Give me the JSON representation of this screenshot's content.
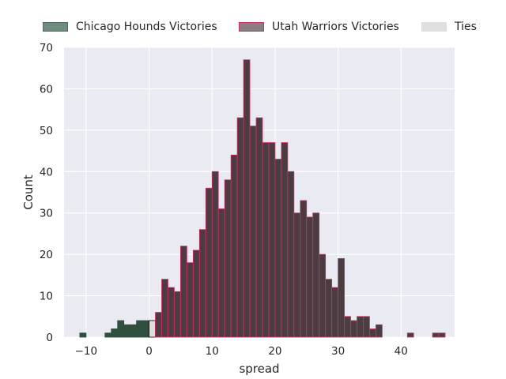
{
  "chart_data": {
    "type": "bar",
    "title": "",
    "xlabel": "spread",
    "ylabel": "Count",
    "xlim": [
      -13.5,
      48.5
    ],
    "ylim": [
      0,
      70
    ],
    "x_ticks": [
      -10,
      0,
      10,
      20,
      30,
      40
    ],
    "y_ticks": [
      0,
      10,
      20,
      30,
      40,
      50,
      60,
      70
    ],
    "grid": true,
    "legend_placement": "top",
    "bin_width": 1,
    "series": [
      {
        "name": "Chicago Hounds Victories",
        "color": "#2f4f3f",
        "edge_color": "#2f4f3f",
        "bins": [
          {
            "x": -11,
            "count": 1
          },
          {
            "x": -7,
            "count": 1
          },
          {
            "x": -6,
            "count": 2
          },
          {
            "x": -5,
            "count": 4
          },
          {
            "x": -4,
            "count": 3
          },
          {
            "x": -3,
            "count": 3
          },
          {
            "x": -2,
            "count": 4
          },
          {
            "x": -1,
            "count": 4
          }
        ]
      },
      {
        "name": "Ties",
        "color": "#dcdcdc",
        "edge_color": "#000000",
        "bins": [
          {
            "x": 0,
            "count": 4
          }
        ]
      },
      {
        "name": "Utah Warriors Victories",
        "color": "#4d3b42",
        "edge_color": "#d0306a",
        "bins": [
          {
            "x": 1,
            "count": 6
          },
          {
            "x": 2,
            "count": 14
          },
          {
            "x": 3,
            "count": 12
          },
          {
            "x": 4,
            "count": 11
          },
          {
            "x": 5,
            "count": 22
          },
          {
            "x": 6,
            "count": 18
          },
          {
            "x": 7,
            "count": 21
          },
          {
            "x": 8,
            "count": 26
          },
          {
            "x": 9,
            "count": 36
          },
          {
            "x": 10,
            "count": 40
          },
          {
            "x": 11,
            "count": 31
          },
          {
            "x": 12,
            "count": 38
          },
          {
            "x": 13,
            "count": 44
          },
          {
            "x": 14,
            "count": 53
          },
          {
            "x": 15,
            "count": 67
          },
          {
            "x": 16,
            "count": 51
          },
          {
            "x": 17,
            "count": 53
          },
          {
            "x": 18,
            "count": 47
          },
          {
            "x": 19,
            "count": 47
          },
          {
            "x": 20,
            "count": 43
          },
          {
            "x": 21,
            "count": 47
          },
          {
            "x": 22,
            "count": 40
          },
          {
            "x": 23,
            "count": 30
          },
          {
            "x": 24,
            "count": 33
          },
          {
            "x": 25,
            "count": 29
          },
          {
            "x": 26,
            "count": 30
          },
          {
            "x": 27,
            "count": 20
          },
          {
            "x": 28,
            "count": 14
          },
          {
            "x": 29,
            "count": 12
          },
          {
            "x": 30,
            "count": 19
          },
          {
            "x": 31,
            "count": 5
          },
          {
            "x": 32,
            "count": 4
          },
          {
            "x": 33,
            "count": 5
          },
          {
            "x": 34,
            "count": 5
          },
          {
            "x": 35,
            "count": 2
          },
          {
            "x": 36,
            "count": 3
          },
          {
            "x": 41,
            "count": 1
          },
          {
            "x": 45,
            "count": 1
          },
          {
            "x": 46,
            "count": 1
          }
        ]
      }
    ]
  },
  "legend": {
    "items": [
      {
        "label": "Chicago Hounds Victories",
        "swatch_color": "#6f8b7d",
        "edge_color": "#4f6b5d"
      },
      {
        "label": "Utah Warriors Victories",
        "swatch_color": "#8a7c82",
        "edge_color": "#d0306a"
      },
      {
        "label": "Ties",
        "swatch_color": "#e0e0e0",
        "edge_color": "#e0e0e0"
      }
    ]
  },
  "colors": {
    "plot_background": "#eaeaf2",
    "grid": "#ffffff"
  }
}
